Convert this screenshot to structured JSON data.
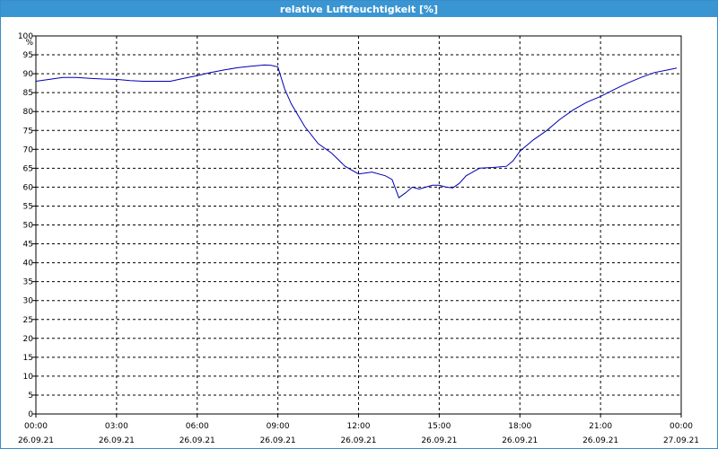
{
  "window": {
    "title": "relative Luftfeuchtigkeit [%]"
  },
  "colors": {
    "title_bar": "#3a96d2",
    "series_line": "#0000b4",
    "grid": "#000000",
    "background": "#ffffff"
  },
  "chart_data": {
    "type": "line",
    "title": "relative Luftfeuchtigkeit [%]",
    "ylabel": "%",
    "xlabel": "",
    "ylim": [
      0,
      100
    ],
    "xlim": [
      "26.09.21 00:00",
      "27.09.21 00:00"
    ],
    "y_ticks": [
      0,
      5,
      10,
      15,
      20,
      25,
      30,
      35,
      40,
      45,
      50,
      55,
      60,
      65,
      70,
      75,
      80,
      85,
      90,
      95,
      100
    ],
    "x_ticks": [
      {
        "time": "00:00",
        "date": "26.09.21"
      },
      {
        "time": "03:00",
        "date": "26.09.21"
      },
      {
        "time": "06:00",
        "date": "26.09.21"
      },
      {
        "time": "09:00",
        "date": "26.09.21"
      },
      {
        "time": "12:00",
        "date": "26.09.21"
      },
      {
        "time": "15:00",
        "date": "26.09.21"
      },
      {
        "time": "18:00",
        "date": "26.09.21"
      },
      {
        "time": "21:00",
        "date": "26.09.21"
      },
      {
        "time": "00:00",
        "date": "27.09.21"
      }
    ],
    "grid": true,
    "x": [
      "00:00",
      "00:30",
      "01:00",
      "01:30",
      "02:00",
      "02:30",
      "03:00",
      "03:30",
      "04:00",
      "04:30",
      "05:00",
      "05:30",
      "06:00",
      "06:30",
      "07:00",
      "07:30",
      "08:00",
      "08:30",
      "08:45",
      "09:00",
      "09:15",
      "09:30",
      "10:00",
      "10:30",
      "11:00",
      "11:30",
      "12:00",
      "12:30",
      "13:00",
      "13:15",
      "13:30",
      "13:45",
      "14:00",
      "14:15",
      "14:30",
      "14:45",
      "15:00",
      "15:15",
      "15:30",
      "15:45",
      "16:00",
      "16:15",
      "16:30",
      "17:00",
      "17:30",
      "17:45",
      "18:00",
      "18:30",
      "19:00",
      "19:30",
      "20:00",
      "20:30",
      "21:00",
      "21:30",
      "22:00",
      "22:30",
      "23:00",
      "23:30",
      "23:50"
    ],
    "series": [
      {
        "values": [
          88,
          88.5,
          89,
          89,
          88.8,
          88.6,
          88.5,
          88.2,
          88,
          88,
          88,
          88.8,
          89.5,
          90.3,
          91,
          91.6,
          92,
          92.3,
          92.2,
          91.8,
          86,
          82,
          76,
          71.5,
          69,
          65.5,
          63.5,
          64,
          63,
          62,
          57.2,
          58.5,
          60,
          59.5,
          60,
          60.5,
          60.5,
          60,
          59.8,
          61,
          63,
          64,
          65,
          65.2,
          65.5,
          67,
          69.5,
          72.5,
          75,
          78,
          80.5,
          82.5,
          84,
          85.8,
          87.5,
          89,
          90.3,
          91,
          91.5
        ]
      }
    ]
  }
}
